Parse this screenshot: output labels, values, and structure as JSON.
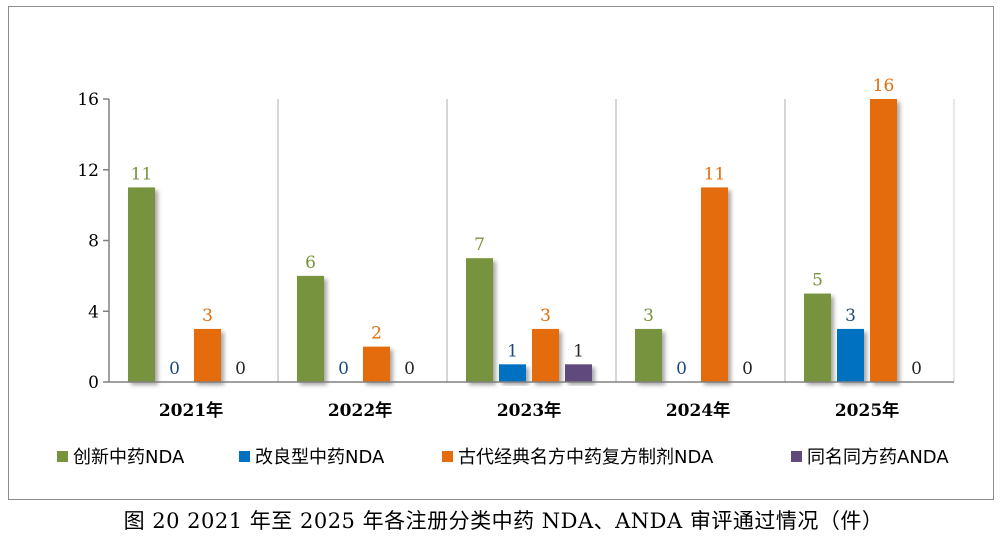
{
  "caption": "图 20   2021 年至 2025 年各注册分类中药 NDA、ANDA 审评通过情况（件）",
  "chart_data": {
    "type": "bar",
    "categories": [
      "2021年",
      "2022年",
      "2023年",
      "2024年",
      "2025年"
    ],
    "series": [
      {
        "name": "创新中药NDA",
        "color": "#77933c",
        "label_color": "#77933c",
        "values": [
          11,
          6,
          7,
          3,
          5
        ]
      },
      {
        "name": "改良型中药NDA",
        "color": "#0070c0",
        "label_color": "#1f497d",
        "values": [
          0,
          0,
          1,
          0,
          3
        ]
      },
      {
        "name": "古代经典名方中药复方制剂NDA",
        "color": "#e46c0a",
        "label_color": "#e46c0a",
        "values": [
          3,
          2,
          3,
          11,
          16
        ]
      },
      {
        "name": "同名同方药ANDA",
        "color": "#604a7b",
        "label_color": "#262626",
        "values": [
          0,
          0,
          1,
          0,
          0
        ]
      }
    ],
    "yticks": [
      0,
      4,
      8,
      12,
      16
    ],
    "ylim": [
      0,
      16
    ],
    "xlabel": "",
    "ylabel": "",
    "grid": "vertical separators between categories",
    "legend_position": "bottom"
  }
}
